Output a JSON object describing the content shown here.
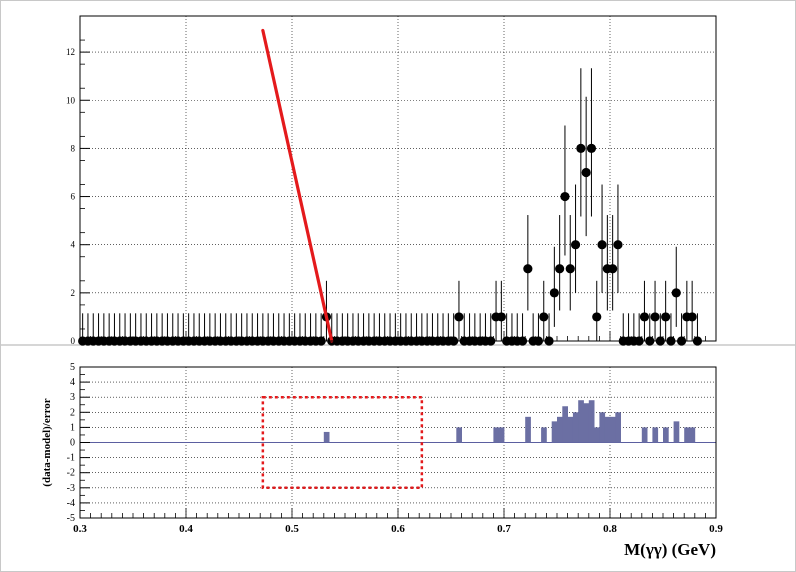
{
  "chart_data": [
    {
      "type": "scatter",
      "title": "",
      "xlabel": "",
      "ylabel": "",
      "xlim": [
        0.3,
        0.9
      ],
      "ylim": [
        0,
        13.5
      ],
      "y_ticks": [
        0,
        2,
        4,
        6,
        8,
        10,
        12
      ],
      "grid": true,
      "points": [
        [
          0.3025,
          0
        ],
        [
          0.3075,
          0
        ],
        [
          0.3125,
          0
        ],
        [
          0.3175,
          0
        ],
        [
          0.3225,
          0
        ],
        [
          0.3275,
          0
        ],
        [
          0.3325,
          0
        ],
        [
          0.3375,
          0
        ],
        [
          0.3425,
          0
        ],
        [
          0.3475,
          0
        ],
        [
          0.3525,
          0
        ],
        [
          0.3575,
          0
        ],
        [
          0.3625,
          0
        ],
        [
          0.3675,
          0
        ],
        [
          0.3725,
          0
        ],
        [
          0.3775,
          0
        ],
        [
          0.3825,
          0
        ],
        [
          0.3875,
          0
        ],
        [
          0.3925,
          0
        ],
        [
          0.3975,
          0
        ],
        [
          0.4025,
          0
        ],
        [
          0.4075,
          0
        ],
        [
          0.4125,
          0
        ],
        [
          0.4175,
          0
        ],
        [
          0.4225,
          0
        ],
        [
          0.4275,
          0
        ],
        [
          0.4325,
          0
        ],
        [
          0.4375,
          0
        ],
        [
          0.4425,
          0
        ],
        [
          0.4475,
          0
        ],
        [
          0.4525,
          0
        ],
        [
          0.4575,
          0
        ],
        [
          0.4625,
          0
        ],
        [
          0.4675,
          0
        ],
        [
          0.4725,
          0
        ],
        [
          0.4775,
          0
        ],
        [
          0.4825,
          0
        ],
        [
          0.4875,
          0
        ],
        [
          0.4925,
          0
        ],
        [
          0.4975,
          0
        ],
        [
          0.5025,
          0
        ],
        [
          0.5075,
          0
        ],
        [
          0.5125,
          0
        ],
        [
          0.5175,
          0
        ],
        [
          0.5225,
          0
        ],
        [
          0.5275,
          0
        ],
        [
          0.5325,
          1
        ],
        [
          0.5375,
          0
        ],
        [
          0.5425,
          0
        ],
        [
          0.5475,
          0
        ],
        [
          0.5525,
          0
        ],
        [
          0.5575,
          0
        ],
        [
          0.5625,
          0
        ],
        [
          0.5675,
          0
        ],
        [
          0.5725,
          0
        ],
        [
          0.5775,
          0
        ],
        [
          0.5825,
          0
        ],
        [
          0.5875,
          0
        ],
        [
          0.5925,
          0
        ],
        [
          0.5975,
          0
        ],
        [
          0.6025,
          0
        ],
        [
          0.6075,
          0
        ],
        [
          0.6125,
          0
        ],
        [
          0.6175,
          0
        ],
        [
          0.6225,
          0
        ],
        [
          0.6275,
          0
        ],
        [
          0.6325,
          0
        ],
        [
          0.6375,
          0
        ],
        [
          0.6425,
          0
        ],
        [
          0.6475,
          0
        ],
        [
          0.6525,
          0
        ],
        [
          0.6575,
          1
        ],
        [
          0.6625,
          0
        ],
        [
          0.6675,
          0
        ],
        [
          0.6725,
          0
        ],
        [
          0.6775,
          0
        ],
        [
          0.6825,
          0
        ],
        [
          0.6875,
          0
        ],
        [
          0.6925,
          1
        ],
        [
          0.6975,
          1
        ],
        [
          0.7025,
          0
        ],
        [
          0.7075,
          0
        ],
        [
          0.7125,
          0
        ],
        [
          0.7175,
          0
        ],
        [
          0.7225,
          3
        ],
        [
          0.7275,
          0
        ],
        [
          0.7325,
          0
        ],
        [
          0.7375,
          1
        ],
        [
          0.7425,
          0
        ],
        [
          0.7475,
          2
        ],
        [
          0.7525,
          3
        ],
        [
          0.7575,
          6
        ],
        [
          0.7625,
          3
        ],
        [
          0.7675,
          4
        ],
        [
          0.7725,
          8
        ],
        [
          0.7775,
          7
        ],
        [
          0.7825,
          8
        ],
        [
          0.7875,
          1
        ],
        [
          0.7925,
          4
        ],
        [
          0.7975,
          3
        ],
        [
          0.8025,
          3
        ],
        [
          0.8075,
          4
        ],
        [
          0.8125,
          0
        ],
        [
          0.8175,
          0
        ],
        [
          0.8225,
          0
        ],
        [
          0.8275,
          0
        ],
        [
          0.8325,
          1
        ],
        [
          0.8375,
          0
        ],
        [
          0.8425,
          1
        ],
        [
          0.8475,
          0
        ],
        [
          0.8525,
          1
        ],
        [
          0.8575,
          0
        ],
        [
          0.8625,
          2
        ],
        [
          0.8675,
          0
        ],
        [
          0.8725,
          1
        ],
        [
          0.8775,
          1
        ],
        [
          0.8825,
          0
        ]
      ],
      "fit_line": {
        "x": [
          0.4725,
          0.5375
        ],
        "y": [
          12.9,
          0
        ]
      },
      "series_colors": {
        "points": "#000000",
        "fit": "#e41a1c"
      }
    },
    {
      "type": "bar",
      "title": "",
      "xlabel": "M(γγ) (GeV)",
      "ylabel": "(data-model)/error",
      "xlim": [
        0.3,
        0.9
      ],
      "ylim": [
        -5,
        5
      ],
      "y_ticks": [
        -5,
        -4,
        -3,
        -2,
        -1,
        0,
        1,
        2,
        3,
        4,
        5
      ],
      "x_ticks": [
        "0.3",
        "0.4",
        "0.5",
        "0.6",
        "0.7",
        "0.8",
        "0.9"
      ],
      "grid": true,
      "bars": [
        [
          0.5325,
          0.7
        ],
        [
          0.6575,
          1.0
        ],
        [
          0.6925,
          1.0
        ],
        [
          0.6975,
          1.0
        ],
        [
          0.7225,
          1.7
        ],
        [
          0.7375,
          1.0
        ],
        [
          0.7475,
          1.4
        ],
        [
          0.7525,
          1.7
        ],
        [
          0.7575,
          2.4
        ],
        [
          0.7625,
          1.7
        ],
        [
          0.7675,
          2.0
        ],
        [
          0.7725,
          2.8
        ],
        [
          0.7775,
          2.6
        ],
        [
          0.7825,
          2.8
        ],
        [
          0.7875,
          1.0
        ],
        [
          0.7925,
          2.0
        ],
        [
          0.7975,
          1.7
        ],
        [
          0.8025,
          1.7
        ],
        [
          0.8075,
          2.0
        ],
        [
          0.8325,
          1.0
        ],
        [
          0.8425,
          1.0
        ],
        [
          0.8525,
          1.0
        ],
        [
          0.8625,
          1.4
        ],
        [
          0.8725,
          1.0
        ],
        [
          0.8775,
          1.0
        ]
      ],
      "bin_width": 0.005,
      "annotation_box": {
        "x": [
          0.4725,
          0.6225
        ],
        "y": [
          -3,
          3
        ]
      },
      "series_colors": {
        "bars": "#6b6fa3",
        "baseline": "#5b5fa0",
        "box": "#e41a1c"
      }
    }
  ]
}
